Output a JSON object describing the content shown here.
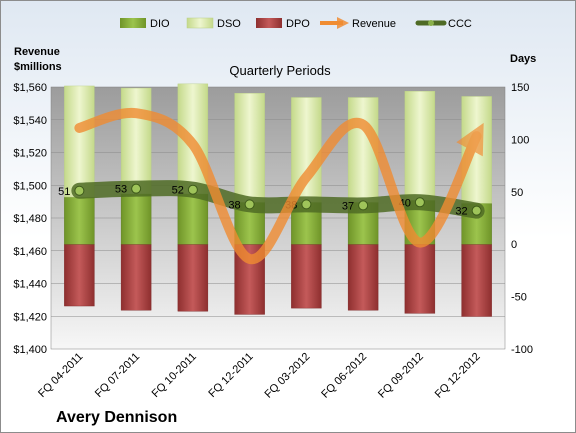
{
  "chart_data": {
    "type": "bar",
    "title": "Quarterly Periods",
    "company": "Avery Dennison",
    "y_left": {
      "label_line1": "Revenue",
      "label_line2": "$millions",
      "range": [
        1400,
        1560
      ],
      "ticks": [
        "$1,400",
        "$1,420",
        "$1,440",
        "$1,460",
        "$1,480",
        "$1,500",
        "$1,520",
        "$1,540",
        "$1,560"
      ]
    },
    "y_right": {
      "label": "Days",
      "range": [
        -100,
        150
      ],
      "ticks": [
        "-100",
        "-50",
        "0",
        "50",
        "100",
        "150"
      ]
    },
    "categories": [
      "FQ 04-2011",
      "FQ 07-2011",
      "FQ 10-2011",
      "FQ 12-2011",
      "FQ 03-2012",
      "FQ 06-2012",
      "FQ 09-2012",
      "FQ 12-2012"
    ],
    "legend": [
      "DIO",
      "DSO",
      "DPO",
      "Revenue",
      "CCC"
    ],
    "series": [
      {
        "name": "DIO",
        "axis": "days",
        "color": "#8db43f",
        "values": [
          45,
          48,
          48,
          40,
          40,
          40,
          42,
          39
        ]
      },
      {
        "name": "DSO",
        "axis": "days",
        "color": "#d8e8a8",
        "values": [
          106,
          101,
          105,
          104,
          100,
          100,
          104,
          102
        ]
      },
      {
        "name": "DPO",
        "axis": "days",
        "color": "#b44444",
        "values": [
          -59,
          -63,
          -64,
          -67,
          -61,
          -63,
          -66,
          -69
        ]
      },
      {
        "name": "Revenue",
        "axis": "revenue",
        "color": "#f08c32",
        "values": [
          1535,
          1544,
          1525,
          1455,
          1505,
          1537,
          1465,
          1530
        ]
      },
      {
        "name": "CCC",
        "axis": "days",
        "color": "#4f6b25",
        "values": [
          51,
          53,
          52,
          38,
          38,
          37,
          40,
          32
        ]
      }
    ],
    "data_labels": [
      "51",
      "53",
      "52",
      "38",
      "38",
      "37",
      "40",
      "32"
    ],
    "grid": true,
    "legend_position": "top"
  }
}
